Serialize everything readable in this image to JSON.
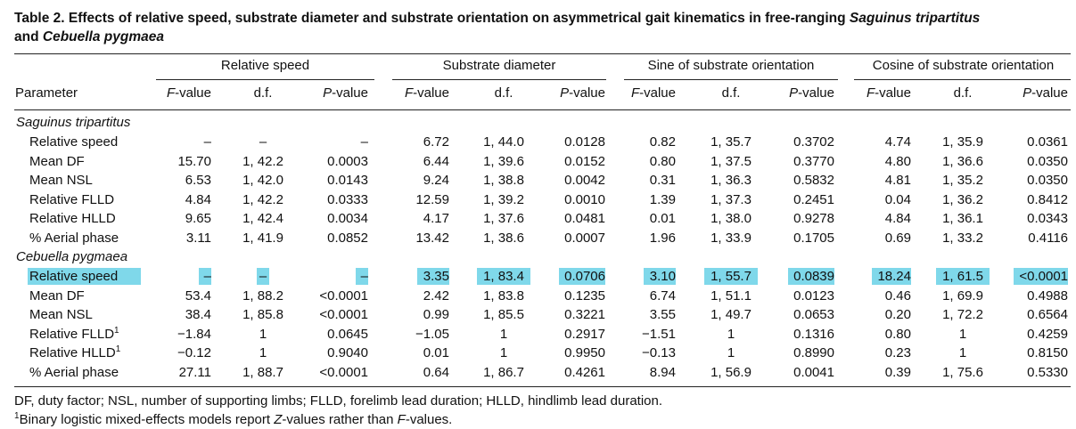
{
  "caption": {
    "part1": "Table 2. Effects of relative speed, substrate diameter and substrate orientation on asymmetrical gait kinematics in free-ranging ",
    "species1": "Saguinus tripartitus",
    "line2_prefix": "and ",
    "species2": "Cebuella pygmaea"
  },
  "group_headers": [
    "Relative speed",
    "Substrate diameter",
    "Sine of substrate orientation",
    "Cosine of substrate orientation"
  ],
  "column_headers": {
    "parameter": "Parameter",
    "f_italic": "F",
    "f_suffix": "-value",
    "df": "d.f.",
    "p_italic": "P",
    "p_suffix": "-value"
  },
  "sections": [
    {
      "title": "Saguinus tripartitus",
      "rows": [
        {
          "label": "Relative speed",
          "sup": "",
          "highlight": false,
          "values": [
            "–",
            "–",
            "–",
            "6.72",
            "1, 44.0",
            "0.0128",
            "0.82",
            "1, 35.7",
            "0.3702",
            "4.74",
            "1, 35.9",
            "0.0361"
          ]
        },
        {
          "label": "Mean DF",
          "sup": "",
          "highlight": false,
          "values": [
            "15.70",
            "1, 42.2",
            "0.0003",
            "6.44",
            "1, 39.6",
            "0.0152",
            "0.80",
            "1, 37.5",
            "0.3770",
            "4.80",
            "1, 36.6",
            "0.0350"
          ]
        },
        {
          "label": "Mean NSL",
          "sup": "",
          "highlight": false,
          "values": [
            "6.53",
            "1, 42.0",
            "0.0143",
            "9.24",
            "1, 38.8",
            "0.0042",
            "0.31",
            "1, 36.3",
            "0.5832",
            "4.81",
            "1, 35.2",
            "0.0350"
          ]
        },
        {
          "label": "Relative FLLD",
          "sup": "",
          "highlight": false,
          "values": [
            "4.84",
            "1, 42.2",
            "0.0333",
            "12.59",
            "1, 39.2",
            "0.0010",
            "1.39",
            "1, 37.3",
            "0.2451",
            "0.04",
            "1, 36.2",
            "0.8412"
          ]
        },
        {
          "label": "Relative HLLD",
          "sup": "",
          "highlight": false,
          "values": [
            "9.65",
            "1, 42.4",
            "0.0034",
            "4.17",
            "1, 37.6",
            "0.0481",
            "0.01",
            "1, 38.0",
            "0.9278",
            "4.84",
            "1, 36.1",
            "0.0343"
          ]
        },
        {
          "label": "% Aerial phase",
          "sup": "",
          "highlight": false,
          "values": [
            "3.11",
            "1, 41.9",
            "0.0852",
            "13.42",
            "1, 38.6",
            "0.0007",
            "1.96",
            "1, 33.9",
            "0.1705",
            "0.69",
            "1, 33.2",
            "0.4116"
          ]
        }
      ]
    },
    {
      "title": "Cebuella pygmaea",
      "rows": [
        {
          "label": "Relative speed",
          "sup": "",
          "highlight": true,
          "values": [
            "–",
            "–",
            "–",
            "3.35",
            "1, 83.4",
            "0.0706",
            "3.10",
            "1, 55.7",
            "0.0839",
            "18.24",
            "1, 61.5",
            "<0.0001"
          ]
        },
        {
          "label": "Mean DF",
          "sup": "",
          "highlight": false,
          "values": [
            "53.4",
            "1, 88.2",
            "<0.0001",
            "2.42",
            "1, 83.8",
            "0.1235",
            "6.74",
            "1, 51.1",
            "0.0123",
            "0.46",
            "1, 69.9",
            "0.4988"
          ]
        },
        {
          "label": "Mean NSL",
          "sup": "",
          "highlight": false,
          "values": [
            "38.4",
            "1, 85.8",
            "<0.0001",
            "0.99",
            "1, 85.5",
            "0.3221",
            "3.55",
            "1, 49.7",
            "0.0653",
            "0.20",
            "1, 72.2",
            "0.6564"
          ]
        },
        {
          "label": "Relative FLLD",
          "sup": "1",
          "highlight": false,
          "values": [
            "−1.84",
            "1",
            "0.0645",
            "−1.05",
            "1",
            "0.2917",
            "−1.51",
            "1",
            "0.1316",
            "0.80",
            "1",
            "0.4259"
          ]
        },
        {
          "label": "Relative HLLD",
          "sup": "1",
          "highlight": false,
          "values": [
            "−0.12",
            "1",
            "0.9040",
            "0.01",
            "1",
            "0.9950",
            "−0.13",
            "1",
            "0.8990",
            "0.23",
            "1",
            "0.8150"
          ]
        },
        {
          "label": "% Aerial phase",
          "sup": "",
          "highlight": false,
          "values": [
            "27.11",
            "1, 88.7",
            "<0.0001",
            "0.64",
            "1, 86.7",
            "0.4261",
            "8.94",
            "1, 56.9",
            "0.0041",
            "0.39",
            "1, 75.6",
            "0.5330"
          ]
        }
      ]
    }
  ],
  "footnotes": {
    "abbreviations": "DF, duty factor; NSL, number of supporting limbs; FLLD, forelimb lead duration; HLLD, hindlimb lead duration.",
    "note_mark": "1",
    "note_pre": "Binary logistic mixed-effects models report ",
    "note_z": "Z",
    "note_mid": "-values rather than ",
    "note_f": "F",
    "note_post": "-values."
  },
  "colors": {
    "highlight": "#7fd8ea",
    "rule": "#222222"
  }
}
